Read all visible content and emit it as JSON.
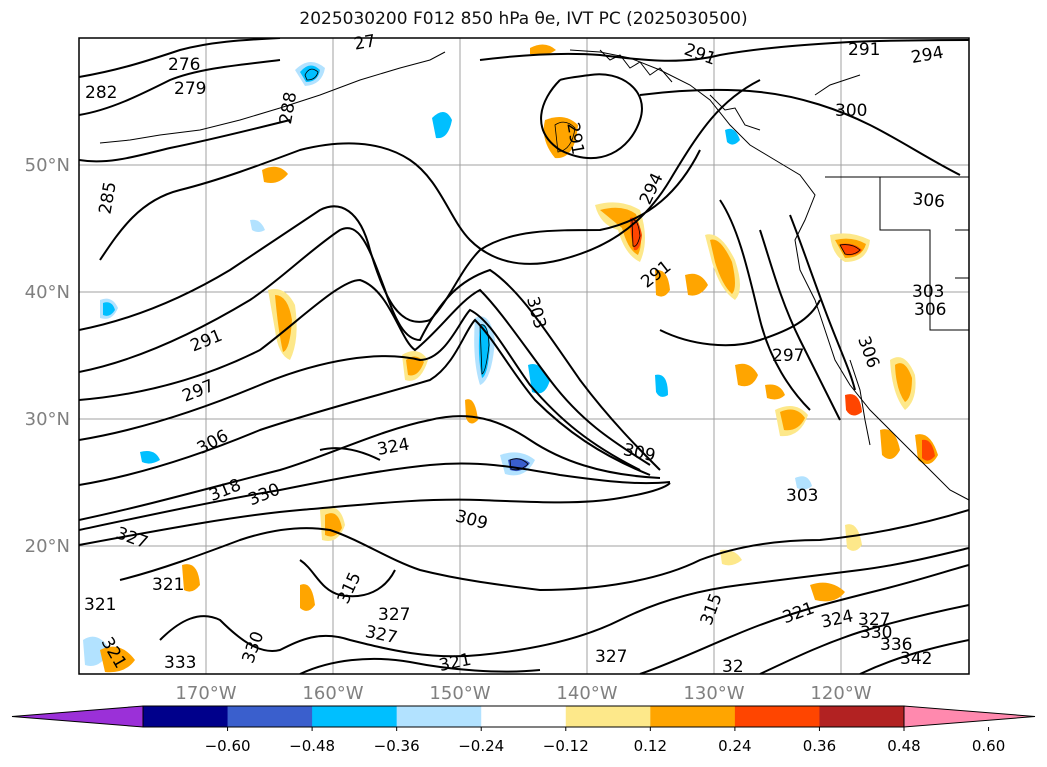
{
  "title": "2025030200 F012 850 hPa θe, IVT PC (2025030500)",
  "lat_labels": [
    "50°N",
    "40°N",
    "30°N",
    "20°N"
  ],
  "lon_labels": [
    "170°W",
    "160°W",
    "150°W",
    "140°W",
    "130°W",
    "120°W"
  ],
  "colorbar": {
    "ticks": [
      "−0.60",
      "−0.48",
      "−0.36",
      "−0.24",
      "−0.12",
      "0.12",
      "0.24",
      "0.36",
      "0.48",
      "0.60"
    ],
    "colors": [
      "#9b30d8",
      "#00008b",
      "#3a5fcd",
      "#00bfff",
      "#b2e2ff",
      "#ffffff",
      "#fde88a",
      "#ffa500",
      "#ff4500",
      "#b22222",
      "#ff89ae"
    ]
  },
  "contour_labels": [
    {
      "text": "276"
    },
    {
      "text": "279"
    },
    {
      "text": "282"
    },
    {
      "text": "288"
    },
    {
      "text": "285"
    },
    {
      "text": "291"
    },
    {
      "text": "297"
    },
    {
      "text": "306"
    },
    {
      "text": "318"
    },
    {
      "text": "330"
    },
    {
      "text": "327"
    },
    {
      "text": "321"
    },
    {
      "text": "333"
    },
    {
      "text": "330"
    },
    {
      "text": "315"
    },
    {
      "text": "327"
    },
    {
      "text": "327"
    },
    {
      "text": "321"
    },
    {
      "text": "309"
    },
    {
      "text": "324"
    },
    {
      "text": "309"
    },
    {
      "text": "303"
    },
    {
      "text": "291"
    },
    {
      "text": "294"
    },
    {
      "text": "291"
    },
    {
      "text": "300"
    },
    {
      "text": "291"
    },
    {
      "text": "294"
    },
    {
      "text": "306"
    },
    {
      "text": "303"
    },
    {
      "text": "306"
    },
    {
      "text": "306"
    },
    {
      "text": "297"
    },
    {
      "text": "303"
    },
    {
      "text": "315"
    },
    {
      "text": "321"
    },
    {
      "text": "324"
    },
    {
      "text": "327"
    },
    {
      "text": "330"
    },
    {
      "text": "336"
    },
    {
      "text": "342"
    },
    {
      "text": "327"
    },
    {
      "text": "32"
    },
    {
      "text": "300"
    },
    {
      "text": "291"
    },
    {
      "text": "321"
    },
    {
      "text": "321"
    },
    {
      "text": "27"
    }
  ]
}
